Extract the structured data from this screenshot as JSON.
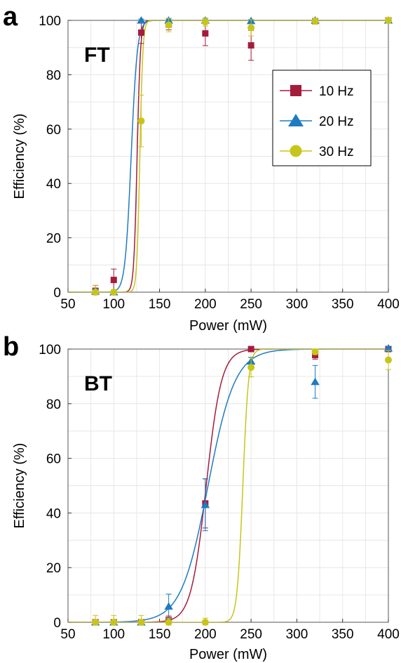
{
  "colors": {
    "series_10": "#a51c3b",
    "series_20": "#1f7bc1",
    "series_30": "#c8c51a",
    "grid": "#e6e6e6",
    "axis": "#000000"
  },
  "chart_data": [
    {
      "panel_letter": "a",
      "type": "scatter",
      "inset_label": "FT",
      "xlabel": "Power (mW)",
      "ylabel": "Efficiency (%)",
      "xlim": [
        50,
        400
      ],
      "ylim": [
        0,
        100
      ],
      "xticks": [
        "50",
        "100",
        "150",
        "200",
        "250",
        "300",
        "350",
        "400"
      ],
      "yticks": [
        "0",
        "20",
        "40",
        "60",
        "80",
        "100"
      ],
      "grid": true,
      "legend_position": "right",
      "legend": [
        "10 Hz",
        "20 Hz",
        "30 Hz"
      ],
      "series": [
        {
          "name": "10 Hz",
          "marker": "square",
          "color_key": "series_10",
          "x": [
            80,
            100,
            130,
            160,
            200,
            250,
            320,
            400
          ],
          "y": [
            0.5,
            4.5,
            95.5,
            98.5,
            95.2,
            90.8,
            99.7,
            100
          ],
          "err": [
            2,
            4,
            4,
            2,
            4.5,
            5.5,
            1,
            0.5
          ],
          "fit": {
            "x0": 125.5,
            "k": 0.55
          }
        },
        {
          "name": "20 Hz",
          "marker": "triangle",
          "color_key": "series_20",
          "x": [
            80,
            100,
            130,
            160,
            200,
            250,
            320,
            400
          ],
          "y": [
            0.3,
            0,
            100,
            100,
            100,
            99.8,
            100,
            100
          ],
          "err": [
            1,
            0.5,
            0.5,
            0.5,
            0.5,
            0.5,
            0.5,
            0.5
          ],
          "fit": {
            "x0": 119,
            "k": 0.3
          }
        },
        {
          "name": "30 Hz",
          "marker": "circle",
          "color_key": "series_30",
          "x": [
            80,
            100,
            130,
            160,
            200,
            250,
            320,
            400
          ],
          "y": [
            0,
            0,
            63,
            98.3,
            99.4,
            97.3,
            99.7,
            100
          ],
          "err": [
            2.5,
            1,
            9.5,
            2.5,
            1.5,
            3,
            1,
            1
          ],
          "fit": {
            "x0": 128.5,
            "k": 0.6
          }
        }
      ]
    },
    {
      "panel_letter": "b",
      "type": "scatter",
      "inset_label": "BT",
      "xlabel": "Power (mW)",
      "ylabel": "Efficiency (%)",
      "xlim": [
        50,
        400
      ],
      "ylim": [
        0,
        100
      ],
      "xticks": [
        "50",
        "100",
        "150",
        "200",
        "250",
        "300",
        "350",
        "400"
      ],
      "yticks": [
        "0",
        "20",
        "40",
        "60",
        "80",
        "100"
      ],
      "grid": true,
      "series": [
        {
          "name": "10 Hz",
          "marker": "square",
          "color_key": "series_10",
          "x": [
            80,
            100,
            130,
            160,
            200,
            250,
            320,
            400
          ],
          "y": [
            0,
            0,
            0,
            0.8,
            43.5,
            100,
            97.8,
            100
          ],
          "err": [
            1,
            1,
            1,
            1.5,
            9,
            0.5,
            1.5,
            0.5
          ],
          "fit": {
            "x0": 201,
            "k": 0.12
          }
        },
        {
          "name": "20 Hz",
          "marker": "triangle",
          "color_key": "series_20",
          "x": [
            80,
            100,
            130,
            160,
            200,
            250,
            320,
            400
          ],
          "y": [
            0,
            0,
            0,
            5.8,
            43,
            95.5,
            88,
            100.3
          ],
          "err": [
            0.5,
            0.5,
            0.5,
            4.5,
            9.5,
            1.5,
            6,
            0.5
          ],
          "fit": {
            "x0": 203,
            "k": 0.068
          }
        },
        {
          "name": "30 Hz",
          "marker": "circle",
          "color_key": "series_30",
          "x": [
            80,
            100,
            130,
            160,
            200,
            250,
            320,
            400
          ],
          "y": [
            0,
            0,
            0,
            0,
            0,
            93.3,
            99,
            96
          ],
          "err": [
            2.5,
            2.5,
            2.5,
            1.5,
            1.5,
            3.5,
            1,
            3.5
          ],
          "fit": {
            "x0": 241,
            "k": 0.32
          }
        }
      ]
    }
  ]
}
